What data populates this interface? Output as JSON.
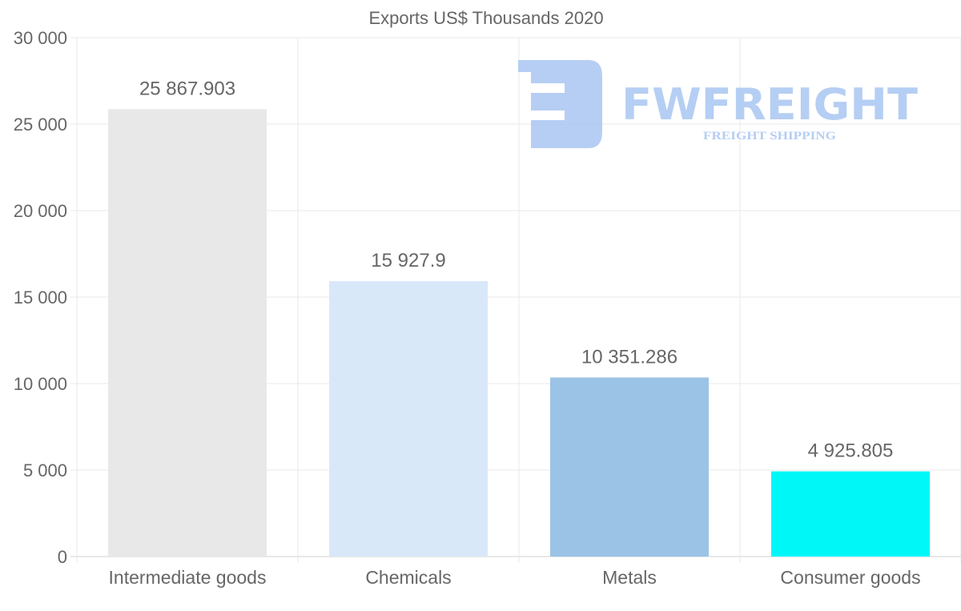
{
  "chart_data": {
    "type": "bar",
    "title": "Exports US$ Thousands 2020",
    "categories": [
      "Intermediate goods",
      "Chemicals",
      "Metals",
      "Consumer goods"
    ],
    "values": [
      25867.903,
      15927.9,
      10351.286,
      4925.805
    ],
    "data_labels": [
      "25 867.903",
      "15 927.9",
      "10 351.286",
      "4 925.805"
    ],
    "colors": [
      "#e8e8e8",
      "#d9e8f9",
      "#9bc3e6",
      "#00f7f7"
    ],
    "ylim": [
      0,
      30000
    ],
    "yticks": [
      0,
      5000,
      10000,
      15000,
      20000,
      25000,
      30000
    ],
    "ytick_labels": [
      "0",
      "5 000",
      "10 000",
      "15 000",
      "20 000",
      "25 000",
      "30 000"
    ],
    "xlabel": "",
    "ylabel": "",
    "grid": true,
    "legend": "none"
  },
  "watermark": {
    "brand": "FWFREIGHT",
    "tagline": "FREIGHT SHIPPING",
    "color": "#a9c6f2"
  }
}
